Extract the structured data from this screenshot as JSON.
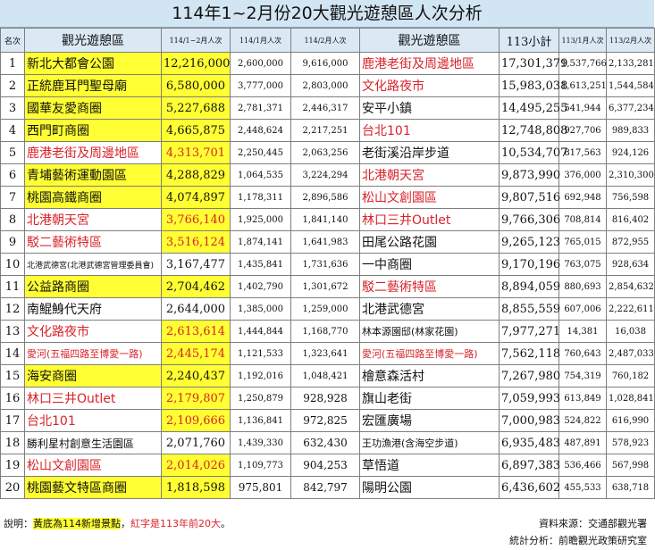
{
  "title": "114年1~2月份20大觀光遊憩區人次分析",
  "headers": {
    "rank": "名次",
    "name_a": "觀光遊憩區",
    "total_a": "114/1~2月人次",
    "jan": "114/1月人次",
    "feb": "114/2月人次",
    "name_b": "觀光遊憩區",
    "total_b": "113小計",
    "jan_b": "113/1月人次",
    "feb_b": "113/2月人次"
  },
  "rows": [
    {
      "rank": "1",
      "a_name": "新北大都會公園",
      "a_total": "12,216,000",
      "a_jan": "2,600,000",
      "a_feb": "9,616,000",
      "b_name": "鹿港老街及周邊地區",
      "b_total": "17,301,379",
      "b_jan": "1,537,766",
      "b_feb": "2,133,281"
    },
    {
      "rank": "2",
      "a_name": "正統鹿耳門聖母廟",
      "a_total": "6,580,000",
      "a_jan": "3,777,000",
      "a_feb": "2,803,000",
      "b_name": "文化路夜市",
      "b_total": "15,983,038",
      "b_jan": "1,613,251",
      "b_feb": "1,544,584"
    },
    {
      "rank": "3",
      "a_name": "國華友愛商圈",
      "a_total": "5,227,688",
      "a_jan": "2,781,371",
      "a_feb": "2,446,317",
      "b_name": "安平小鎮",
      "b_total": "14,495,255",
      "b_jan": "541,944",
      "b_feb": "6,377,234"
    },
    {
      "rank": "4",
      "a_name": "西門町商圈",
      "a_total": "4,665,875",
      "a_jan": "2,448,624",
      "a_feb": "2,217,251",
      "b_name": "台北101",
      "b_total": "12,748,808",
      "b_jan": "927,706",
      "b_feb": "989,833"
    },
    {
      "rank": "5",
      "a_name": "鹿港老街及周邊地區",
      "a_total": "4,313,701",
      "a_jan": "2,250,445",
      "a_feb": "2,063,256",
      "b_name": "老街溪沿岸步道",
      "b_total": "10,534,707",
      "b_jan": "817,563",
      "b_feb": "924,126"
    },
    {
      "rank": "6",
      "a_name": "青埔藝術運動園區",
      "a_total": "4,288,829",
      "a_jan": "1,064,535",
      "a_feb": "3,224,294",
      "b_name": "北港朝天宮",
      "b_total": "9,873,990",
      "b_jan": "376,000",
      "b_feb": "2,310,300"
    },
    {
      "rank": "7",
      "a_name": "桃園高鐵商圈",
      "a_total": "4,074,897",
      "a_jan": "1,178,311",
      "a_feb": "2,896,586",
      "b_name": "松山文創園區",
      "b_total": "9,807,516",
      "b_jan": "692,948",
      "b_feb": "756,598"
    },
    {
      "rank": "8",
      "a_name": "北港朝天宮",
      "a_total": "3,766,140",
      "a_jan": "1,925,000",
      "a_feb": "1,841,140",
      "b_name": "林口三井Outlet",
      "b_total": "9,766,306",
      "b_jan": "708,814",
      "b_feb": "816,402"
    },
    {
      "rank": "9",
      "a_name": "駁二藝術特區",
      "a_total": "3,516,124",
      "a_jan": "1,874,141",
      "a_feb": "1,641,983",
      "b_name": "田尾公路花園",
      "b_total": "9,265,123",
      "b_jan": "765,015",
      "b_feb": "872,955"
    },
    {
      "rank": "10",
      "a_name": "北港武德宮(北港武德宮管理委員會)",
      "a_total": "3,167,477",
      "a_jan": "1,435,841",
      "a_feb": "1,731,636",
      "b_name": "一中商圈",
      "b_total": "9,170,196",
      "b_jan": "763,075",
      "b_feb": "928,634"
    },
    {
      "rank": "11",
      "a_name": "公益路商圈",
      "a_total": "2,704,462",
      "a_jan": "1,402,790",
      "a_feb": "1,301,672",
      "b_name": "駁二藝術特區",
      "b_total": "8,894,059",
      "b_jan": "880,693",
      "b_feb": "2,854,632"
    },
    {
      "rank": "12",
      "a_name": "南鯤鯓代天府",
      "a_total": "2,644,000",
      "a_jan": "1,385,000",
      "a_feb": "1,259,000",
      "b_name": "北港武德宮",
      "b_total": "8,855,559",
      "b_jan": "607,006",
      "b_feb": "2,222,611"
    },
    {
      "rank": "13",
      "a_name": "文化路夜市",
      "a_total": "2,613,614",
      "a_jan": "1,444,844",
      "a_feb": "1,168,770",
      "b_name": "林本源園邸(林家花園)",
      "b_total": "7,977,271",
      "b_jan": "14,381",
      "b_feb": "16,038"
    },
    {
      "rank": "14",
      "a_name": "愛河(五福四路至博愛一路)",
      "a_total": "2,445,174",
      "a_jan": "1,121,533",
      "a_feb": "1,323,641",
      "b_name": "愛河(五福四路至博愛一路)",
      "b_total": "7,562,118",
      "b_jan": "760,643",
      "b_feb": "2,487,033"
    },
    {
      "rank": "15",
      "a_name": "海安商圈",
      "a_total": "2,240,437",
      "a_jan": "1,192,016",
      "a_feb": "1,048,421",
      "b_name": "檜意森活村",
      "b_total": "7,267,980",
      "b_jan": "754,319",
      "b_feb": "760,182"
    },
    {
      "rank": "16",
      "a_name": "林口三井Outlet",
      "a_total": "2,179,807",
      "a_jan": "1,250,879",
      "a_feb": "928,928",
      "b_name": "旗山老街",
      "b_total": "7,059,993",
      "b_jan": "613,849",
      "b_feb": "1,028,841"
    },
    {
      "rank": "17",
      "a_name": "台北101",
      "a_total": "2,109,666",
      "a_jan": "1,136,841",
      "a_feb": "972,825",
      "b_name": "宏匯廣場",
      "b_total": "7,000,983",
      "b_jan": "524,822",
      "b_feb": "616,990"
    },
    {
      "rank": "18",
      "a_name": "勝利星村創意生活園區",
      "a_total": "2,071,760",
      "a_jan": "1,439,330",
      "a_feb": "632,430",
      "b_name": "王功漁港(含海空步道)",
      "b_total": "6,935,483",
      "b_jan": "487,891",
      "b_feb": "578,923"
    },
    {
      "rank": "19",
      "a_name": "松山文創園區",
      "a_total": "2,014,026",
      "a_jan": "1,109,773",
      "a_feb": "904,253",
      "b_name": "草悟道",
      "b_total": "6,897,383",
      "b_jan": "536,466",
      "b_feb": "567,998"
    },
    {
      "rank": "20",
      "a_name": "桃園藝文特區商圈",
      "a_total": "1,818,598",
      "a_jan": "975,801",
      "a_feb": "842,797",
      "b_name": "陽明公園",
      "b_total": "6,436,602",
      "b_jan": "455,533",
      "b_feb": "638,718"
    }
  ],
  "footer": {
    "note_prefix": "說明：",
    "note_yellow": "黃底為114新增景點",
    "note_sep": "，",
    "note_red": "紅字是113年前20大",
    "note_end": "。",
    "source": "資料來源：交通部觀光署",
    "analysis": "統計分析：前瞻觀光政策研究室"
  },
  "style": {
    "highlight_color": "#ffff33",
    "red_color": "#d8232a",
    "header_bg": "#dbe9f5"
  }
}
